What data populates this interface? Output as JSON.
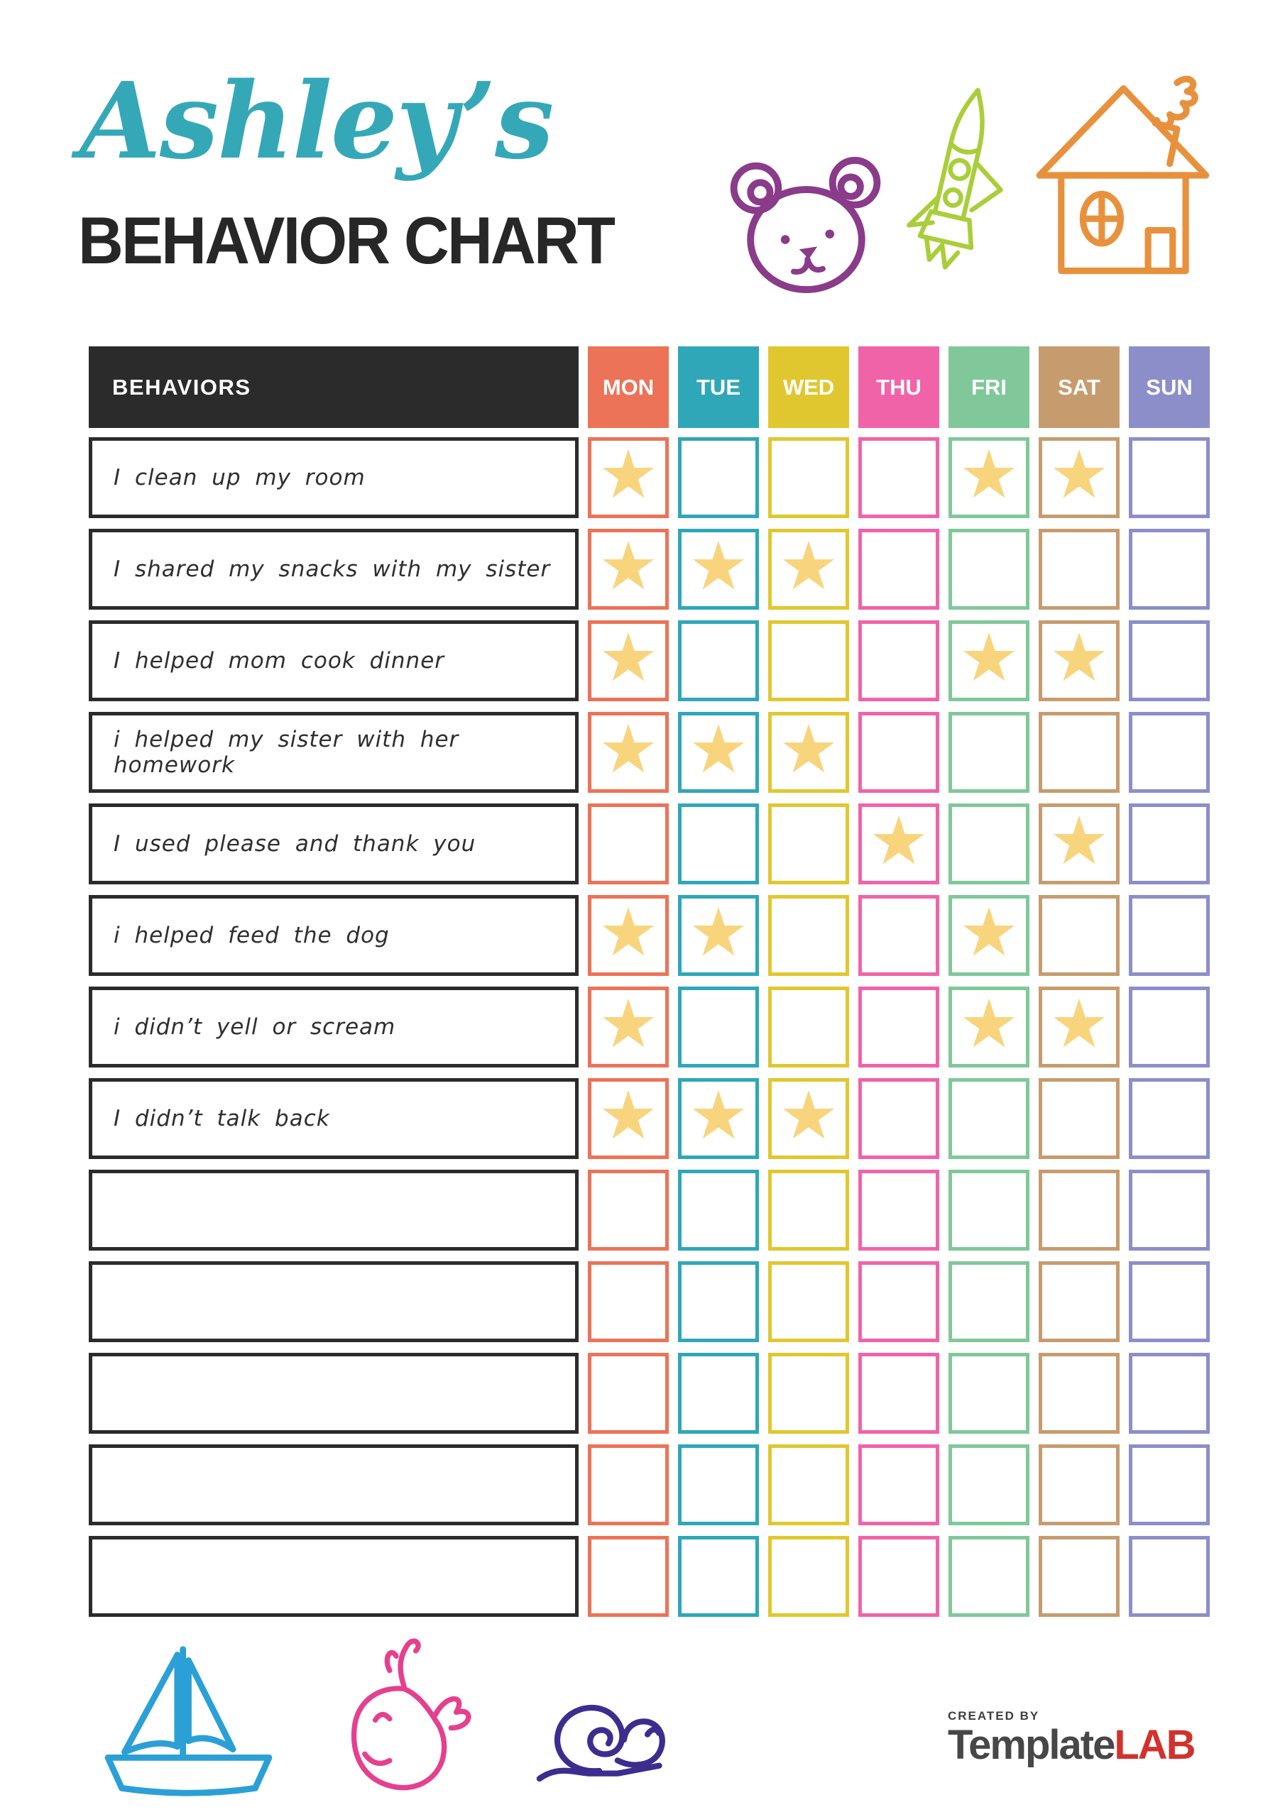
{
  "page": {
    "title_script": "Ashley’s",
    "title_script_color": "#35a8b8",
    "title_main": "BEHAVIOR CHART",
    "title_main_color": "#272727"
  },
  "table": {
    "behaviors_header": "BEHAVIORS",
    "header_bg": "#2b2b2b",
    "days": [
      {
        "label": "MON",
        "color": "#ec7357"
      },
      {
        "label": "TUE",
        "color": "#2fa7b9"
      },
      {
        "label": "WED",
        "color": "#e0c72f"
      },
      {
        "label": "THU",
        "color": "#f163a9"
      },
      {
        "label": "FRI",
        "color": "#80c89a"
      },
      {
        "label": "SAT",
        "color": "#c69c6e"
      },
      {
        "label": "SUN",
        "color": "#8b8ec9"
      }
    ],
    "star": {
      "glyph": "★",
      "color": "#f8d47d"
    },
    "rows": [
      {
        "label": "I clean up my room",
        "stars": [
          "MON",
          "FRI",
          "SAT"
        ]
      },
      {
        "label": "I shared my snacks with my sister",
        "stars": [
          "MON",
          "TUE",
          "WED"
        ]
      },
      {
        "label": "I helped mom cook dinner",
        "stars": [
          "MON",
          "FRI",
          "SAT"
        ]
      },
      {
        "label": "i helped my sister with her homework",
        "stars": [
          "MON",
          "TUE",
          "WED"
        ]
      },
      {
        "label": "I used please and thank you",
        "stars": [
          "THU",
          "SAT"
        ]
      },
      {
        "label": "i helped feed the dog",
        "stars": [
          "MON",
          "TUE",
          "FRI"
        ]
      },
      {
        "label": "i didn’t yell or scream",
        "stars": [
          "MON",
          "FRI",
          "SAT"
        ]
      },
      {
        "label": "I didn’t talk back",
        "stars": [
          "MON",
          "TUE",
          "WED"
        ]
      },
      {
        "label": "",
        "stars": []
      },
      {
        "label": "",
        "stars": []
      },
      {
        "label": "",
        "stars": []
      },
      {
        "label": "",
        "stars": []
      },
      {
        "label": "",
        "stars": []
      }
    ]
  },
  "doodles": {
    "bear_color": "#8a3b8a",
    "rocket_color": "#a9ce39",
    "house_color": "#e8913d",
    "boat_color": "#2ba0d6",
    "whale_color": "#e5408f",
    "snail_color": "#3c2d8f"
  },
  "footer": {
    "created_by": "CREATED BY",
    "brand_left": "Template",
    "brand_left_color": "#474747",
    "brand_right": "LAB",
    "brand_right_color": "#d2322d"
  }
}
